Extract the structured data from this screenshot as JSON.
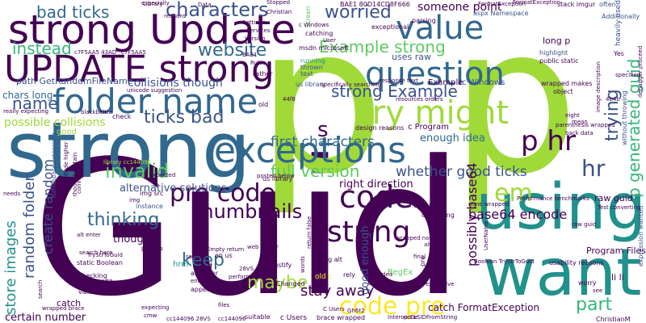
{
  "palette": [
    "#440154",
    "#3b528b",
    "#21918c",
    "#5ec962",
    "#a0da39",
    "#fde725",
    "#31688e",
    "#35b779"
  ],
  "words": [
    {
      "text": "Guid",
      "color": "#440154"
    },
    {
      "text": "p",
      "color": "#a0da39"
    },
    {
      "text": "p",
      "color": "#a0da39"
    },
    {
      "text": "strong",
      "color": "#31688e"
    },
    {
      "text": "strong Update",
      "color": "#440154"
    },
    {
      "text": "UPDATE strong",
      "color": "#440154"
    },
    {
      "text": "want",
      "color": "#21918c"
    },
    {
      "text": "using",
      "color": "#21918c"
    },
    {
      "text": "exceptions",
      "color": "#31688e"
    },
    {
      "text": "folder name",
      "color": "#31688e"
    },
    {
      "text": "try might",
      "color": "#a0da39"
    },
    {
      "text": "question",
      "color": "#31688e"
    },
    {
      "text": "value",
      "color": "#31688e"
    },
    {
      "text": "code",
      "color": "#440154"
    },
    {
      "text": "pre code",
      "color": "#440154"
    },
    {
      "text": "code pre",
      "color": "#fde725"
    },
    {
      "text": "characters",
      "color": "#3b528b"
    },
    {
      "text": "bad ticks",
      "color": "#31688e"
    },
    {
      "text": "instead",
      "color": "#35b779"
    },
    {
      "text": "website",
      "color": "#31688e"
    },
    {
      "text": "worried",
      "color": "#3b528b"
    },
    {
      "text": "Example strong",
      "color": "#5ec962"
    },
    {
      "text": "strong Example",
      "color": "#3b528b"
    },
    {
      "text": "ticks bad",
      "color": "#3b528b"
    },
    {
      "text": "invalid",
      "color": "#5ec962"
    },
    {
      "text": "full version",
      "color": "#5ec962"
    },
    {
      "text": "whether good ticks",
      "color": "#3b528b"
    },
    {
      "text": "first characters",
      "color": "#31688e"
    },
    {
      "text": "p hr",
      "color": "#440154"
    },
    {
      "text": "hr",
      "color": "#3b528b"
    },
    {
      "text": "em",
      "color": "#a0da39"
    },
    {
      "text": "string",
      "color": "#440154"
    },
    {
      "text": "thumbnails",
      "color": "#440154"
    },
    {
      "text": "thinking",
      "color": "#31688e"
    },
    {
      "text": "keep",
      "color": "#31688e"
    },
    {
      "text": "maybe",
      "color": "#a0da39"
    },
    {
      "text": "stay away",
      "color": "#440154"
    },
    {
      "text": "part",
      "color": "#35b779"
    },
    {
      "text": "name",
      "color": "#3b528b"
    },
    {
      "text": "s",
      "color": "#440154"
    },
    {
      "text": "trying",
      "color": "#3b528b"
    },
    {
      "text": "p generated guid",
      "color": "#35b779"
    },
    {
      "text": "store images",
      "color": "#21918c"
    },
    {
      "text": "random folder",
      "color": "#3b528b"
    },
    {
      "text": "create random",
      "color": "#3b528b"
    },
    {
      "text": "base64 encode",
      "color": "#440154"
    },
    {
      "text": "possibly base64",
      "color": "#440154"
    },
    {
      "text": "good enough",
      "color": "#3b528b"
    },
    {
      "text": "right direction",
      "color": "#440154"
    },
    {
      "text": "enough idea",
      "color": "#31688e"
    },
    {
      "text": "alternative solutions",
      "color": "#3b528b"
    },
    {
      "text": "collisions though",
      "color": "#3b528b"
    },
    {
      "text": "possible collisions",
      "color": "#a0da39"
    },
    {
      "text": "chars long",
      "color": "#31688e"
    },
    {
      "text": "path GetRandomFileName",
      "color": "#3b528b"
    },
    {
      "text": "someone point",
      "color": "#440154"
    },
    {
      "text": "uses raw",
      "color": "#3b528b"
    },
    {
      "text": "long p",
      "color": "#440154"
    },
    {
      "text": "though p",
      "color": "#440154"
    },
    {
      "text": "certain number",
      "color": "#440154"
    },
    {
      "text": "catch FormatException",
      "color": "#440154"
    },
    {
      "text": "c Program",
      "color": "#440154"
    },
    {
      "text": "Program Files",
      "color": "#440154"
    },
    {
      "text": "raw guid",
      "color": "#440154"
    },
    {
      "text": "li li",
      "color": "#440154"
    },
    {
      "text": "Example",
      "color": "#440154"
    },
    {
      "text": "c Windows",
      "color": "#3b528b"
    },
    {
      "text": "BAE1 80D14CD8F666",
      "color": "#440154"
    },
    {
      "text": "aspx Namespace",
      "color": "#3b528b"
    },
    {
      "text": "exceptional",
      "color": "#440154"
    },
    {
      "text": "parsing",
      "color": "#440154"
    },
    {
      "text": "stack imgur",
      "color": "#440154"
    },
    {
      "text": "Screen",
      "color": "#5ec962"
    },
    {
      "text": "heavily used",
      "color": "#3b528b"
    },
    {
      "text": "often",
      "color": "#3b528b"
    },
    {
      "text": "Additionally",
      "color": "#3b528b"
    },
    {
      "text": "public static",
      "color": "#440154"
    },
    {
      "text": "highlight",
      "color": "#3b528b"
    },
    {
      "text": "wrapped makes",
      "color": "#440154"
    },
    {
      "text": "object",
      "color": "#440154"
    },
    {
      "text": "catching",
      "color": "#440154"
    },
    {
      "text": "msdn microsoft",
      "color": "#440154"
    },
    {
      "text": "running",
      "color": "#21918c"
    },
    {
      "text": "us library",
      "color": "#3b528b"
    },
    {
      "text": "rather",
      "color": "#440154"
    },
    {
      "text": "text",
      "color": "#3b528b"
    },
    {
      "text": "thrown",
      "color": "#3b528b"
    },
    {
      "text": "design reasons",
      "color": "#440154"
    },
    {
      "text": "parenthesis wrapped",
      "color": "#440154"
    },
    {
      "text": "back data",
      "color": "#440154"
    },
    {
      "text": "without throwing",
      "color": "#3b528b"
    },
    {
      "text": "expression wanted",
      "color": "#3b528b"
    },
    {
      "text": "usability reasons",
      "color": "#440154"
    },
    {
      "text": "worry",
      "color": "#440154"
    },
    {
      "text": "ChristianM",
      "color": "#440154"
    },
    {
      "text": "data tying",
      "color": "#440154"
    },
    {
      "text": "Boolean TryStrToGuid",
      "color": "#440154"
    },
    {
      "text": "expensive",
      "color": "#440154"
    },
    {
      "text": "RegEx",
      "color": "#5ec962"
    },
    {
      "text": "Interop CLSIDFromString",
      "color": "#440154"
    },
    {
      "text": "brace wrapped",
      "color": "#440154"
    },
    {
      "text": "us library",
      "color": "#440154"
    },
    {
      "text": "c Users",
      "color": "#440154"
    },
    {
      "text": "img src",
      "color": "#440154"
    },
    {
      "text": "instance",
      "color": "#3b528b"
    },
    {
      "text": "static Boolean",
      "color": "#440154"
    },
    {
      "text": "href",
      "color": "#21918c"
    },
    {
      "text": "checking",
      "color": "#440154"
    },
    {
      "text": "43F8 BAE1",
      "color": "#440154"
    },
    {
      "text": "alt enter",
      "color": "#440154"
    },
    {
      "text": "validity",
      "color": "#440154"
    },
    {
      "text": "appending",
      "color": "#440154"
    },
    {
      "text": "catch",
      "color": "#440154"
    },
    {
      "text": "wrapped brace",
      "color": "#440154"
    },
    {
      "text": "expecting",
      "color": "#440154"
    },
    {
      "text": "cc144096 28VS",
      "color": "#440154"
    },
    {
      "text": "suitable",
      "color": "#440154"
    },
    {
      "text": "cmw",
      "color": "#440154"
    },
    {
      "text": "sample",
      "color": "#440154"
    },
    {
      "text": "process",
      "color": "#440154"
    },
    {
      "text": "li",
      "color": "#440154"
    },
    {
      "text": "ul",
      "color": "#440154"
    },
    {
      "text": "rely",
      "color": "#440154"
    },
    {
      "text": "final",
      "color": "#440154"
    },
    {
      "text": "hard",
      "color": "#440154"
    },
    {
      "text": "pre",
      "color": "#440154"
    },
    {
      "text": "28VS aspx",
      "color": "#440154"
    },
    {
      "text": "justify",
      "color": "#440154"
    },
    {
      "text": "Changed",
      "color": "#440154"
    },
    {
      "text": "performance",
      "color": "#440154"
    },
    {
      "text": "old c",
      "color": "#fde725"
    },
    {
      "text": "png alt",
      "color": "#440154"
    },
    {
      "text": "words",
      "color": "#440154"
    },
    {
      "text": "web server",
      "color": "#440154"
    },
    {
      "text": "return false",
      "color": "#440154"
    },
    {
      "text": "used",
      "color": "#440154"
    },
    {
      "text": "en us",
      "color": "#440154"
    },
    {
      "text": "Gh6t2 png",
      "color": "#440154"
    },
    {
      "text": "none wrapped",
      "color": "#440154"
    },
    {
      "text": "Performance benchmarks",
      "color": "#440154"
    },
    {
      "text": "raw guid",
      "color": "#440154"
    },
    {
      "text": "check",
      "color": "#440154"
    },
    {
      "text": "good",
      "color": "#a0da39"
    },
    {
      "text": "old",
      "color": "#440154"
    },
    {
      "text": "Namespace extensions",
      "color": "#3b528b"
    },
    {
      "text": "magnitude higher",
      "color": "#440154"
    },
    {
      "text": "thought certain",
      "color": "#440154"
    },
    {
      "text": "really expecting",
      "color": "#440154"
    },
    {
      "text": "needs",
      "color": "#440154"
    },
    {
      "text": "convert",
      "color": "#440154"
    },
    {
      "text": "Library",
      "color": "#440154"
    },
    {
      "text": "library cc144096",
      "color": "#a0da39"
    },
    {
      "text": "Yes",
      "color": "#440154"
    },
    {
      "text": "reasons",
      "color": "#440154"
    },
    {
      "text": "especially",
      "color": "#440154"
    },
    {
      "text": "idea",
      "color": "#440154"
    },
    {
      "text": "expected",
      "color": "#440154"
    },
    {
      "text": "posted below",
      "color": "#440154"
    },
    {
      "text": "Test converting",
      "color": "#440154"
    },
    {
      "text": "FormatException",
      "color": "#440154"
    },
    {
      "text": "specified",
      "color": "#440154"
    },
    {
      "text": "see",
      "color": "#440154"
    },
    {
      "text": "unicode suggestion",
      "color": "#440154"
    },
    {
      "text": "User",
      "color": "#440154"
    },
    {
      "text": "Empty return",
      "color": "#440154"
    },
    {
      "text": "TryStrToGuid",
      "color": "#440154"
    },
    {
      "text": "UserName",
      "color": "#440154"
    },
    {
      "text": "wrapped none",
      "color": "#440154"
    },
    {
      "text": "search",
      "color": "#440154"
    },
    {
      "text": "search here",
      "color": "#440154"
    },
    {
      "text": "c Windows",
      "color": "#440154"
    },
    {
      "text": "resources orders",
      "color": "#440154"
    },
    {
      "text": "eight",
      "color": "#440154"
    },
    {
      "text": "specifically searching",
      "color": "#440154"
    },
    {
      "text": "response text",
      "color": "#440154"
    },
    {
      "text": "mean",
      "color": "#440154"
    },
    {
      "text": "image description",
      "color": "#440154"
    },
    {
      "text": "debugger proceed",
      "color": "#440154"
    },
    {
      "text": "alt enter",
      "color": "#440154"
    },
    {
      "text": "blackbeltte",
      "color": "#440154"
    },
    {
      "text": "c7F5AA5 43AD",
      "color": "#440154"
    },
    {
      "text": "enter",
      "color": "#440154"
    },
    {
      "text": "UserName",
      "color": "#440154"
    },
    {
      "text": "Settings",
      "color": "#440154"
    },
    {
      "text": "Services",
      "color": "#440154"
    },
    {
      "text": "Version",
      "color": "#440154"
    },
    {
      "text": "Rules",
      "color": "#440154"
    },
    {
      "text": "FormatException",
      "color": "#440154"
    },
    {
      "text": "none",
      "color": "#440154"
    },
    {
      "text": "Stopped",
      "color": "#440154"
    },
    {
      "text": "Data",
      "color": "#440154"
    },
    {
      "text": "C Users",
      "color": "#440154"
    },
    {
      "text": "Christian",
      "color": "#440154"
    },
    {
      "text": "BAE1",
      "color": "#440154"
    },
    {
      "text": "44f8",
      "color": "#440154"
    },
    {
      "text": "alt",
      "color": "#440154"
    },
    {
      "text": "files",
      "color": "#440154"
    },
    {
      "text": "Gh6t2",
      "color": "#440154"
    },
    {
      "text": "c7F5AA5",
      "color": "#440154"
    },
    {
      "text": "cc144096",
      "color": "#440154"
    },
    {
      "text": "4b4b",
      "color": "#440154"
    },
    {
      "text": "img",
      "color": "#440154"
    }
  ]
}
